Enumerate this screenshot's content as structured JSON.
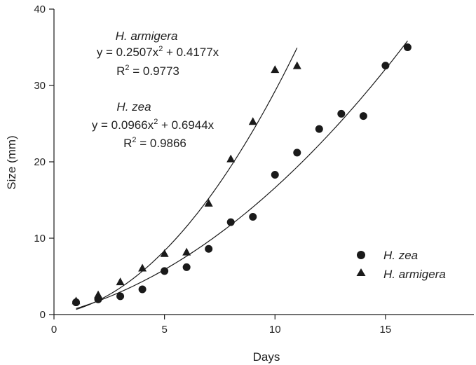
{
  "chart_data": {
    "type": "scatter",
    "xlabel": "Days",
    "ylabel": "Size (mm)",
    "xlim": [
      0,
      19
    ],
    "ylim": [
      0,
      40
    ],
    "x_ticks": [
      0,
      5,
      10,
      15
    ],
    "y_ticks": [
      0,
      10,
      20,
      30,
      40
    ],
    "grid": false,
    "legend_position": "bottom-right",
    "series": [
      {
        "name": "H. zea",
        "marker": "circle",
        "color": "#1a1a1a",
        "x": [
          1,
          2,
          3,
          4,
          5,
          6,
          7,
          8,
          9,
          10,
          11,
          12,
          13,
          14,
          15,
          16
        ],
        "y": [
          1.6,
          2.0,
          2.4,
          3.3,
          5.7,
          6.2,
          8.6,
          12.1,
          12.8,
          18.3,
          21.2,
          24.3,
          26.3,
          26.0,
          32.6,
          35.0
        ],
        "fit": {
          "a": 0.0966,
          "b": 0.6944,
          "x_range": [
            1,
            16
          ]
        }
      },
      {
        "name": "H. armigera",
        "marker": "triangle",
        "color": "#1a1a1a",
        "x": [
          1,
          2,
          3,
          4,
          5,
          6,
          7,
          8,
          9,
          10,
          11
        ],
        "y": [
          1.8,
          2.6,
          4.3,
          6.1,
          8.0,
          8.2,
          14.6,
          20.4,
          25.3,
          32.1,
          32.6
        ],
        "fit": {
          "a": 0.2507,
          "b": 0.4177,
          "x_range": [
            1,
            11
          ]
        }
      }
    ],
    "annotations": [
      {
        "species": "H. armigera",
        "eq_prefix": "y =  0.2507x",
        "eq_sup": "2",
        "eq_suffix": " + 0.4177x",
        "r2_prefix": "R",
        "r2_sup": "2",
        "r2_suffix": " = 0.9773"
      },
      {
        "species": "H. zea",
        "eq_prefix": "y =  0.0966x",
        "eq_sup": "2",
        "eq_suffix": " + 0.6944x",
        "r2_prefix": "R",
        "r2_sup": "2",
        "r2_suffix": " = 0.9866"
      }
    ]
  }
}
